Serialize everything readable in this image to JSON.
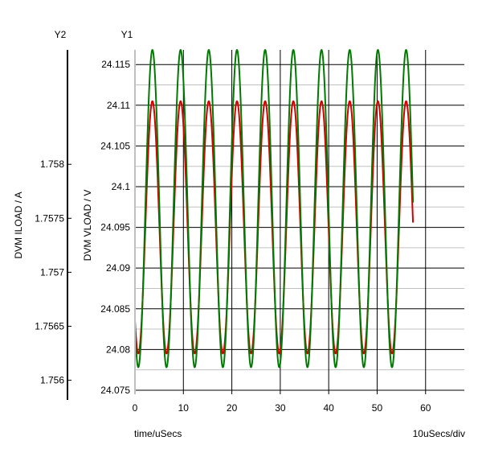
{
  "chart_data": {
    "type": "line",
    "y1": {
      "header": "Y1",
      "label": "DVM VLOAD / V",
      "range": [
        24.0745,
        24.1168
      ],
      "ticks": [
        24.075,
        24.08,
        24.085,
        24.09,
        24.095,
        24.1,
        24.105,
        24.11,
        24.115
      ],
      "tick_labels": [
        "24.075",
        "24.08",
        "24.085",
        "24.09",
        "24.095",
        "24.1",
        "24.105",
        "24.11",
        "24.115"
      ]
    },
    "y2": {
      "header": "Y2",
      "label": "DVM ILOAD / A",
      "range": [
        1.75587,
        1.75906
      ],
      "ticks": [
        1.756,
        1.7565,
        1.757,
        1.7575,
        1.758
      ],
      "tick_labels": [
        "1.756",
        "1.7565",
        "1.757",
        "1.7575",
        "1.758"
      ]
    },
    "x": {
      "label": "time/uSecs",
      "scale_label": "10uSecs/div",
      "range": [
        0,
        68
      ],
      "ticks": [
        0,
        10,
        20,
        30,
        40,
        50,
        60
      ],
      "tick_labels": [
        "0",
        "10",
        "20",
        "30",
        "40",
        "50",
        "60"
      ]
    },
    "grid": true,
    "series": [
      {
        "axis": "y1",
        "color": "#d40000",
        "period_us": 5.82,
        "phase_us": 3.6,
        "x_range": [
          0,
          57.4
        ],
        "min": 24.0795,
        "max": 24.1105
      },
      {
        "axis": "y2",
        "color": "#007a00",
        "period_us": 5.82,
        "phase_us": 3.6,
        "x_range": [
          0,
          57.4
        ],
        "min": 1.75612,
        "max": 1.75906
      }
    ]
  }
}
